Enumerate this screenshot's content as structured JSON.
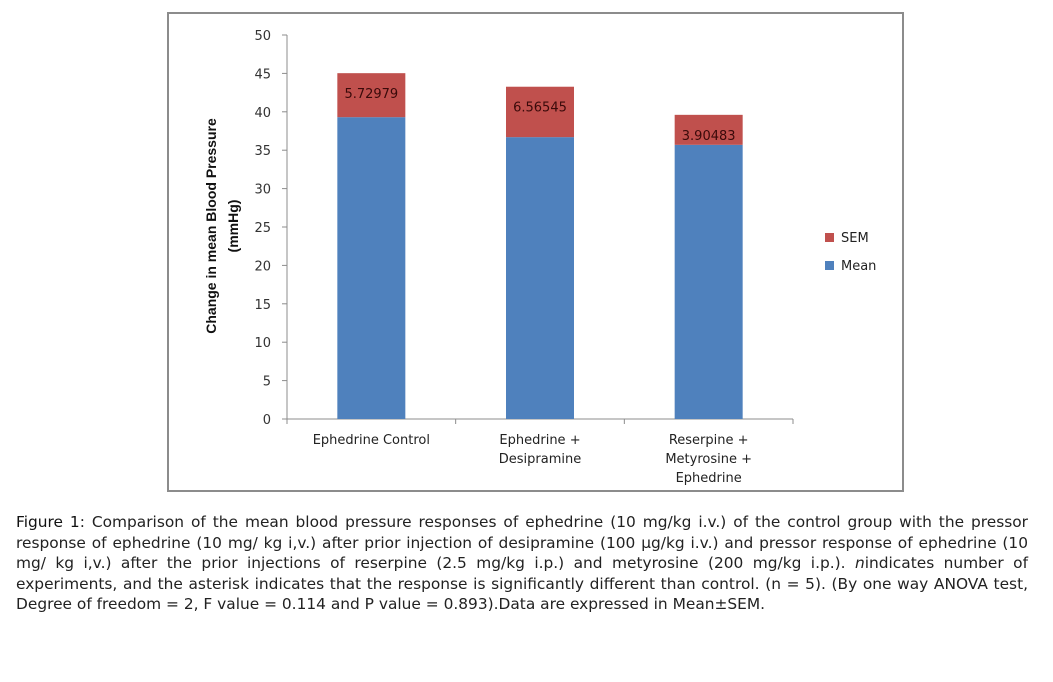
{
  "chart_data": {
    "type": "bar",
    "stacked": true,
    "title": "",
    "xlabel": "",
    "ylabel": "Change in mean Blood Pressure",
    "ylabel_unit": "(mmHg)",
    "ylim": [
      0,
      50
    ],
    "yticks": [
      0,
      5,
      10,
      15,
      20,
      25,
      30,
      35,
      40,
      45,
      50
    ],
    "grid": false,
    "legend_position": "right",
    "categories": [
      [
        "Ephedrine Control"
      ],
      [
        "Ephedrine +",
        "Desipramine"
      ],
      [
        "Reserpine +",
        "Metyrosine +",
        "Ephedrine"
      ]
    ],
    "series": [
      {
        "name": "Mean",
        "color": "#4f81bd",
        "values": [
          39.3,
          36.7,
          35.7
        ]
      },
      {
        "name": "SEM",
        "color": "#c0504d",
        "values": [
          5.72979,
          6.56545,
          3.90483
        ],
        "labels": [
          "5.72979",
          "6.56545",
          "3.90483"
        ]
      }
    ],
    "legend": [
      {
        "name": "SEM",
        "color": "#c0504d"
      },
      {
        "name": "Mean",
        "color": "#4f81bd"
      }
    ]
  },
  "caption": {
    "label": "Figure 1",
    "text_1": ": Comparison of the mean blood pressure responses of ephedrine (10 mg/kg i.v.) of the control group with the pressor response of ephedrine (10 mg/ kg i,v.) after prior injection of desipramine (100 µg/kg i.v.) and pressor response of ephedrine (10 mg/ kg i,v.) after the prior injections of reserpine (2.5 mg/kg i.p.) and metyrosine (200 mg/kg i.p.). ",
    "italic_n": "n",
    "text_2": "indicates number of experiments, and the asterisk indicates that the response is significantly different than control. (n = 5). (By one way ANOVA test, Degree of freedom = 2, F value = 0.114 and P value = 0.893).Data are expressed in Mean±SEM."
  }
}
